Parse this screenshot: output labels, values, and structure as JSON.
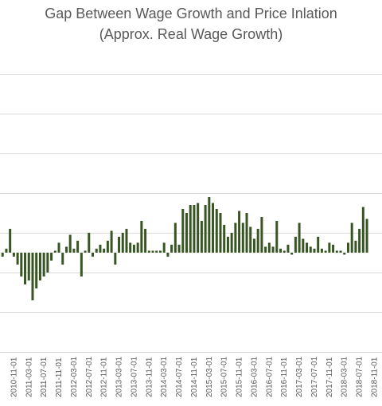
{
  "chart_data": {
    "type": "bar",
    "title": "Gap Between Wage Growth and Price Inlation",
    "subtitle": "(Approx. Real Wage Growth)",
    "xlabel": "",
    "ylabel": "",
    "grid": true,
    "legend": "none",
    "bar_color": "#375623",
    "grid_color": "#d9d9d9",
    "x_tick_labels": [
      "2010-11-01",
      "2011-03-01",
      "2011-07-01",
      "2011-11-01",
      "2012-03-01",
      "2012-07-01",
      "2012-11-01",
      "2013-03-01",
      "2013-07-01",
      "2013-11-01",
      "2014-03-01",
      "2014-07-01",
      "2014-11-01",
      "2015-03-01",
      "2015-07-01",
      "2015-11-01",
      "2016-03-01",
      "2016-07-01",
      "2016-11-01",
      "2017-03-01",
      "2017-07-01",
      "2017-11-01",
      "2018-03-01",
      "2018-07-01",
      "2018-11-01"
    ],
    "start_month": "2010-07-01",
    "ylim": [
      -2.5,
      5
    ],
    "series": [
      {
        "values": [
          0.4,
          -0.1,
          0.1,
          0.6,
          -0.1,
          -0.3,
          -0.6,
          -0.8,
          -0.7,
          -1.2,
          -0.9,
          -0.7,
          -0.6,
          -0.5,
          -0.2,
          0.05,
          0.25,
          -0.3,
          0.15,
          0.45,
          0.1,
          0.3,
          -0.6,
          0.05,
          0.5,
          -0.1,
          0.1,
          0.2,
          0.1,
          0.3,
          0.55,
          -0.3,
          0.4,
          0.5,
          0.6,
          0.25,
          0.2,
          0.25,
          0.8,
          0.6,
          0.05,
          0.05,
          0.05,
          0.05,
          0.25,
          -0.1,
          0.2,
          0.75,
          0.2,
          1.1,
          1.0,
          1.2,
          1.2,
          1.25,
          0.8,
          1.2,
          1.4,
          1.25,
          1.1,
          1.0,
          0.7,
          0.4,
          0.5,
          0.75,
          1.05,
          0.75,
          1.0,
          0.65,
          0.35,
          0.6,
          0.9,
          0.15,
          0.25,
          0.15,
          0.8,
          0.1,
          0.05,
          0.2,
          -0.05,
          0.4,
          0.75,
          0.35,
          0.25,
          0.15,
          0.1,
          0.4,
          0.1,
          0.05,
          0.25,
          0.2,
          0.05,
          0.05,
          -0.05,
          0.25,
          0.75,
          0.3,
          0.6,
          1.15,
          0.85
        ]
      }
    ]
  }
}
